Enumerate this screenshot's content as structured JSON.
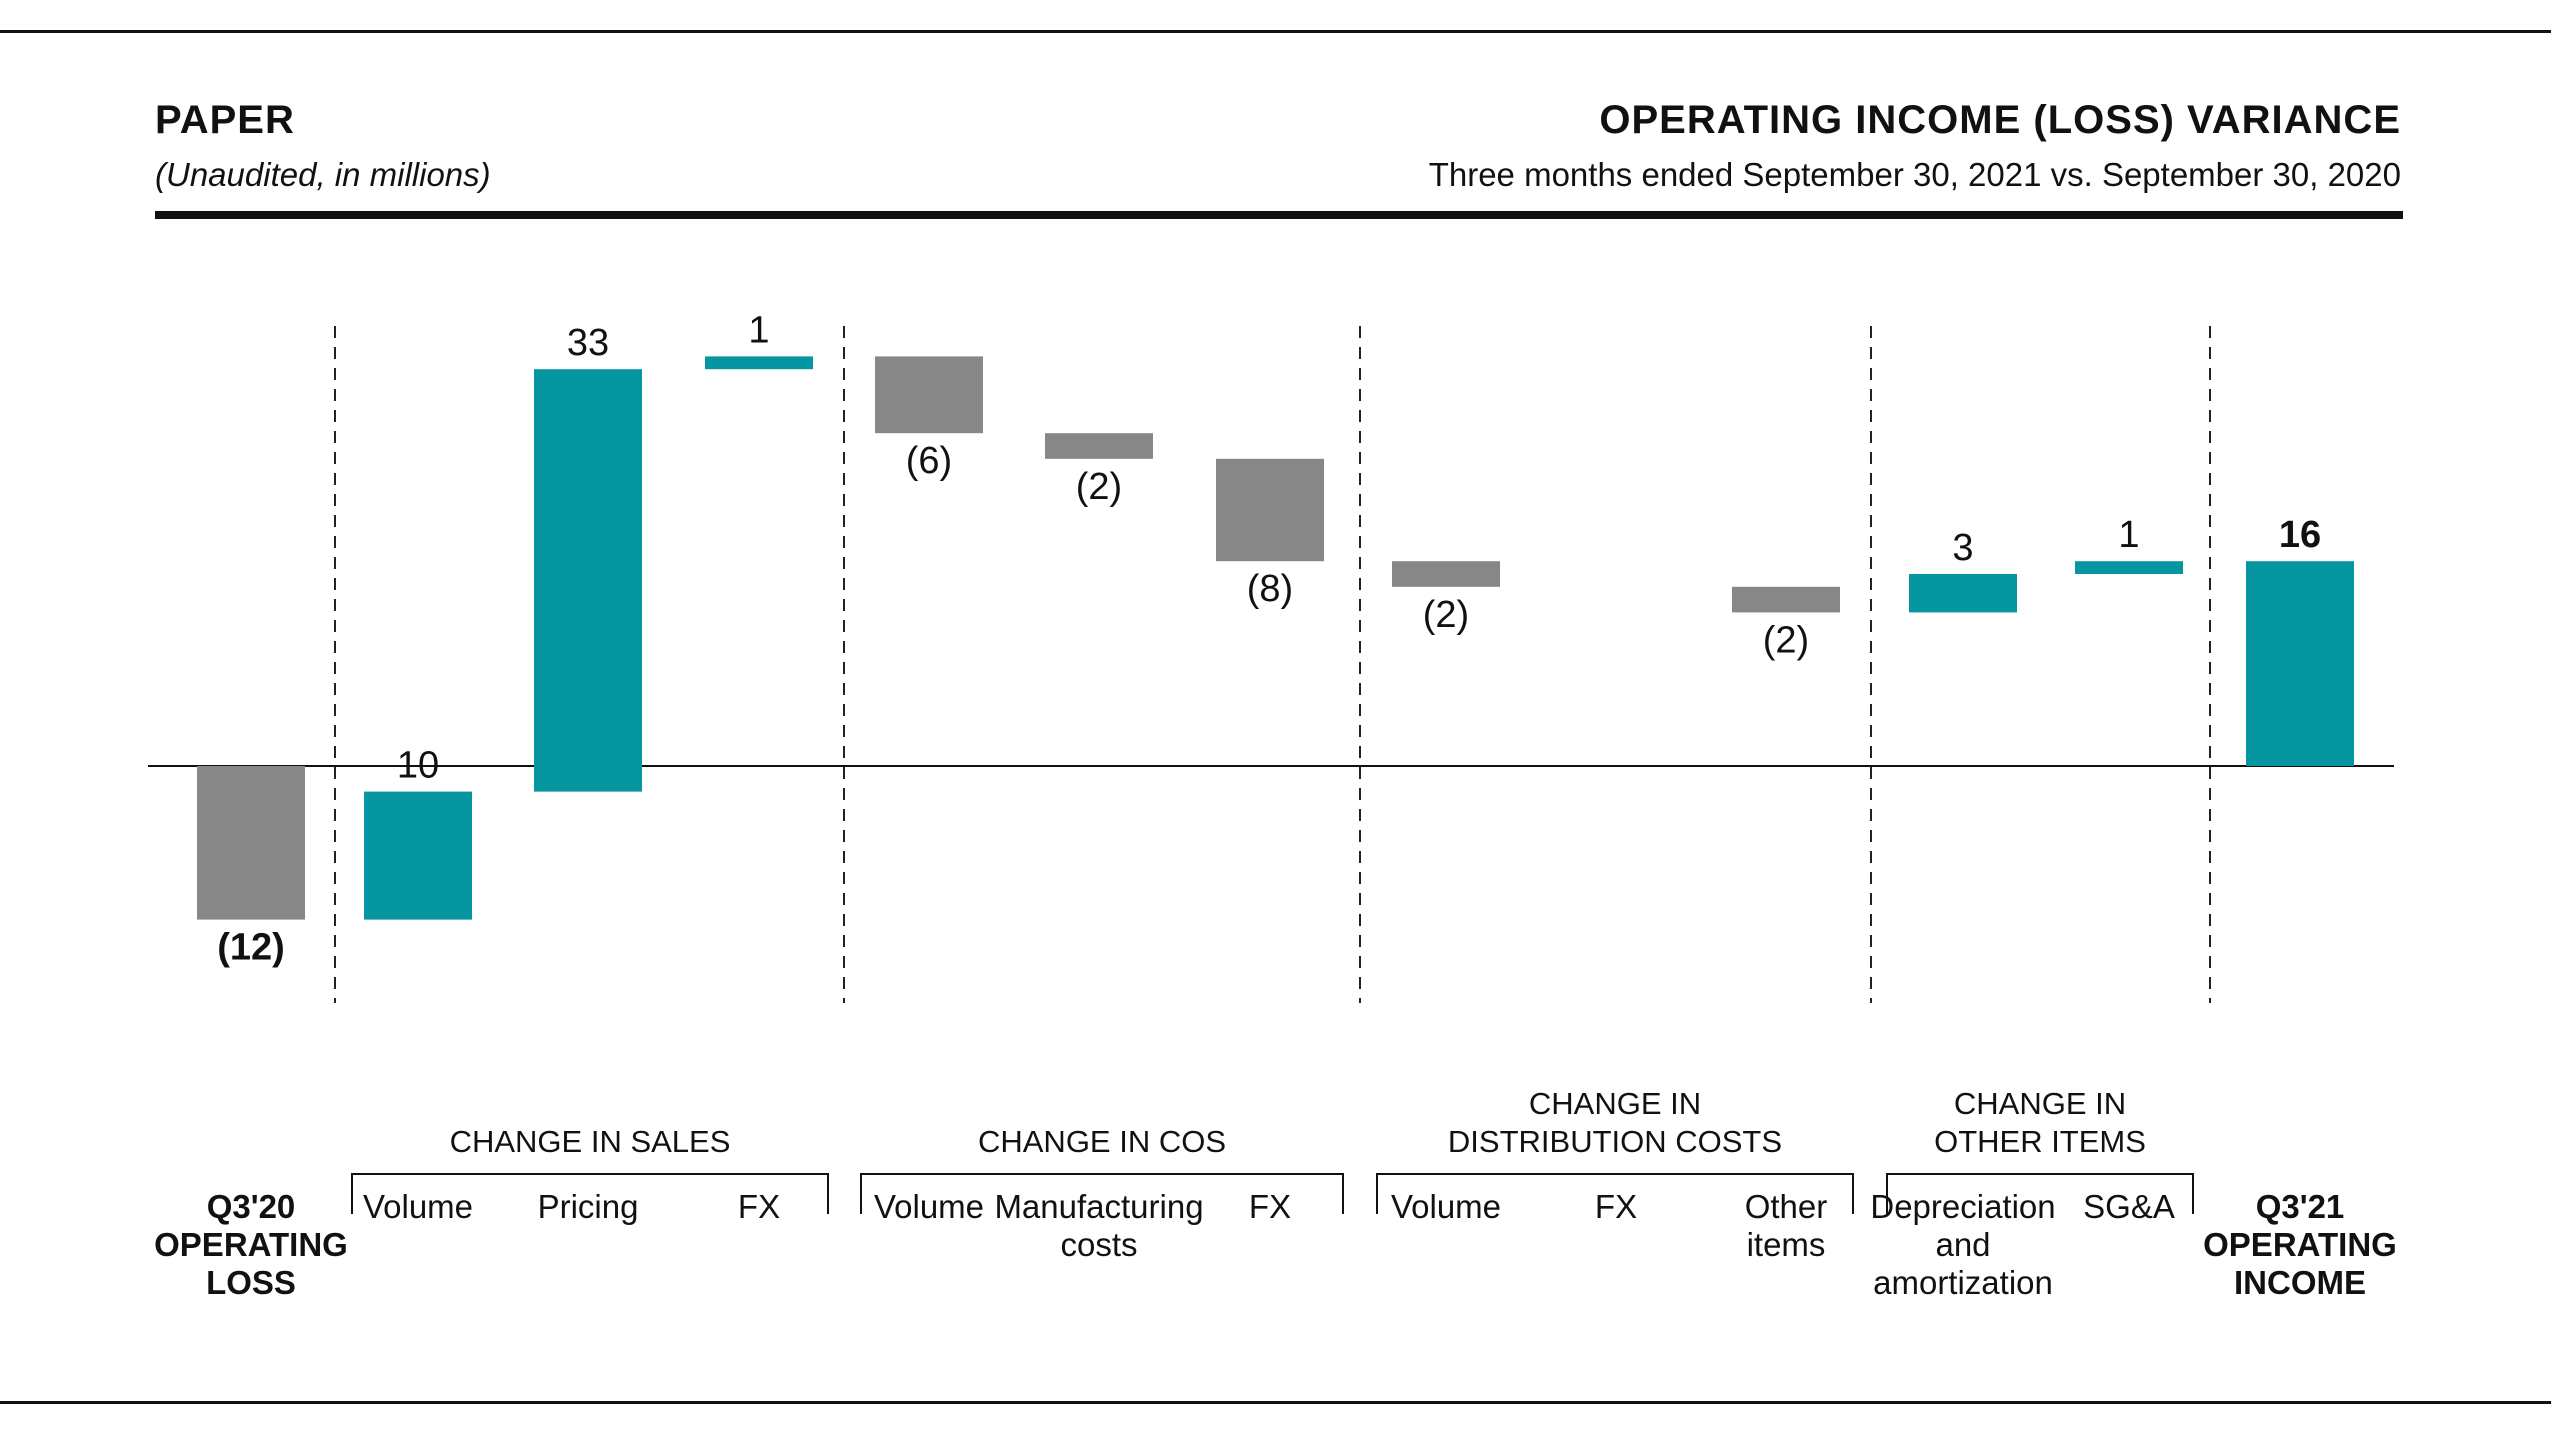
{
  "header": {
    "segment": "PAPER",
    "units": "(Unaudited, in millions)",
    "title": "OPERATING INCOME (LOSS) VARIANCE",
    "subtitle": "Three months ended September 30, 2021 vs. September 30, 2020"
  },
  "chart_data": {
    "type": "bar",
    "subtype": "waterfall",
    "ylim": [
      -16,
      36
    ],
    "grid": false,
    "colors": {
      "positive": "#0596a2",
      "negative": "#878787",
      "total_negative": "#878787",
      "total_positive": "#0596a2"
    },
    "items": [
      {
        "label": [
          "Q3'20",
          "OPERATING",
          "LOSS"
        ],
        "value": -12,
        "display": "(12)",
        "kind": "total",
        "bold": true
      },
      {
        "label": [
          "Volume"
        ],
        "value": 10,
        "display": "10",
        "kind": "delta",
        "group": 0
      },
      {
        "label": [
          "Pricing"
        ],
        "value": 33,
        "display": "33",
        "kind": "delta",
        "group": 0
      },
      {
        "label": [
          "FX"
        ],
        "value": 1,
        "display": "1",
        "kind": "delta",
        "group": 0
      },
      {
        "label": [
          "Volume"
        ],
        "value": -6,
        "display": "(6)",
        "kind": "delta",
        "group": 1
      },
      {
        "label": [
          "Manufacturing",
          "costs"
        ],
        "value": -2,
        "display": "(2)",
        "kind": "delta",
        "group": 1
      },
      {
        "label": [
          "FX"
        ],
        "value": -8,
        "display": "(8)",
        "kind": "delta",
        "group": 1
      },
      {
        "label": [
          "Volume"
        ],
        "value": -2,
        "display": "(2)",
        "kind": "delta",
        "group": 2
      },
      {
        "label": [
          "FX"
        ],
        "value": 0,
        "display": "",
        "kind": "delta",
        "group": 2
      },
      {
        "label": [
          "Other",
          "items"
        ],
        "value": -2,
        "display": "(2)",
        "kind": "delta",
        "group": 2
      },
      {
        "label": [
          "Depreciation",
          "and",
          "amortization"
        ],
        "value": 3,
        "display": "3",
        "kind": "delta",
        "group": 3
      },
      {
        "label": [
          "SG&A"
        ],
        "value": 1,
        "display": "1",
        "kind": "delta",
        "group": 3
      },
      {
        "label": [
          "Q3'21",
          "OPERATING",
          "INCOME"
        ],
        "value": 16,
        "display": "16",
        "kind": "total",
        "bold": true
      }
    ],
    "groups": [
      {
        "label": [
          "CHANGE IN SALES"
        ]
      },
      {
        "label": [
          "CHANGE IN COS"
        ]
      },
      {
        "label": [
          "CHANGE IN",
          "DISTRIBUTION COSTS"
        ]
      },
      {
        "label": [
          "CHANGE IN",
          "OTHER ITEMS"
        ]
      }
    ]
  }
}
